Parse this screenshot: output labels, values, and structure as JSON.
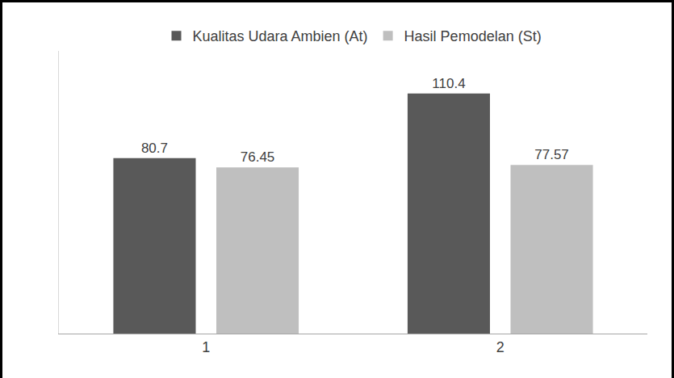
{
  "chart_data": {
    "type": "bar",
    "categories": [
      "1",
      "2"
    ],
    "series": [
      {
        "name": "Kualitas Udara Ambien (At)",
        "color": "#595959",
        "values": [
          80.7,
          110.4
        ]
      },
      {
        "name": "Hasil Pemodelan (St)",
        "color": "#bfbfbf",
        "values": [
          76.45,
          77.57
        ]
      }
    ],
    "ylim": [
      0,
      130
    ],
    "legend": "top",
    "data_labels": true,
    "tick_labels": "x",
    "grid": false
  }
}
